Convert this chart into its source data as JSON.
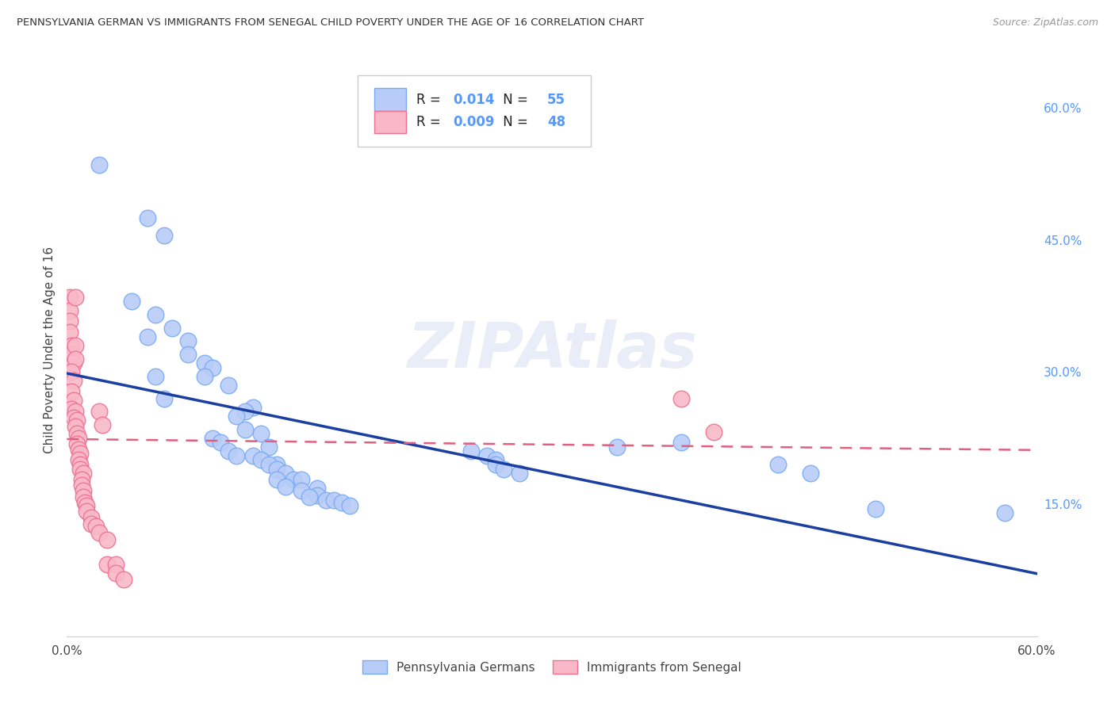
{
  "title": "PENNSYLVANIA GERMAN VS IMMIGRANTS FROM SENEGAL CHILD POVERTY UNDER THE AGE OF 16 CORRELATION CHART",
  "source": "Source: ZipAtlas.com",
  "ylabel": "Child Poverty Under the Age of 16",
  "bg_color": "#ffffff",
  "plot_bg_color": "#ffffff",
  "grid_color": "#cccccc",
  "blue_scatter_face": "#b8ccf8",
  "blue_scatter_edge": "#7aaaf5",
  "pink_scatter_face": "#f8b8c8",
  "pink_scatter_edge": "#f07090",
  "trend_blue_color": "#1a3fa0",
  "trend_pink_color": "#e06080",
  "right_tick_color": "#5599ff",
  "R_blue": 0.014,
  "N_blue": 55,
  "R_pink": 0.009,
  "N_pink": 48,
  "xlim": [
    0.0,
    0.6
  ],
  "ylim": [
    0.0,
    0.65
  ],
  "xticks": [
    0.0,
    0.1,
    0.2,
    0.3,
    0.4,
    0.5,
    0.6
  ],
  "yticks_right": [
    0.15,
    0.3,
    0.45,
    0.6
  ],
  "ytick_labels_right": [
    "15.0%",
    "30.0%",
    "45.0%",
    "60.0%"
  ],
  "blue_points": [
    [
      0.02,
      0.535
    ],
    [
      0.05,
      0.475
    ],
    [
      0.06,
      0.455
    ],
    [
      0.04,
      0.38
    ],
    [
      0.055,
      0.365
    ],
    [
      0.065,
      0.35
    ],
    [
      0.05,
      0.34
    ],
    [
      0.075,
      0.335
    ],
    [
      0.075,
      0.32
    ],
    [
      0.085,
      0.31
    ],
    [
      0.09,
      0.305
    ],
    [
      0.055,
      0.295
    ],
    [
      0.085,
      0.295
    ],
    [
      0.1,
      0.285
    ],
    [
      0.06,
      0.27
    ],
    [
      0.115,
      0.26
    ],
    [
      0.11,
      0.255
    ],
    [
      0.105,
      0.25
    ],
    [
      0.11,
      0.235
    ],
    [
      0.12,
      0.23
    ],
    [
      0.09,
      0.225
    ],
    [
      0.095,
      0.22
    ],
    [
      0.125,
      0.215
    ],
    [
      0.1,
      0.21
    ],
    [
      0.105,
      0.205
    ],
    [
      0.115,
      0.205
    ],
    [
      0.12,
      0.2
    ],
    [
      0.13,
      0.195
    ],
    [
      0.125,
      0.195
    ],
    [
      0.13,
      0.19
    ],
    [
      0.135,
      0.185
    ],
    [
      0.13,
      0.178
    ],
    [
      0.14,
      0.178
    ],
    [
      0.145,
      0.178
    ],
    [
      0.135,
      0.17
    ],
    [
      0.155,
      0.168
    ],
    [
      0.145,
      0.165
    ],
    [
      0.155,
      0.16
    ],
    [
      0.15,
      0.158
    ],
    [
      0.16,
      0.155
    ],
    [
      0.165,
      0.155
    ],
    [
      0.17,
      0.152
    ],
    [
      0.175,
      0.148
    ],
    [
      0.25,
      0.21
    ],
    [
      0.26,
      0.205
    ],
    [
      0.265,
      0.2
    ],
    [
      0.265,
      0.195
    ],
    [
      0.27,
      0.19
    ],
    [
      0.28,
      0.185
    ],
    [
      0.34,
      0.215
    ],
    [
      0.38,
      0.22
    ],
    [
      0.44,
      0.195
    ],
    [
      0.46,
      0.185
    ],
    [
      0.5,
      0.145
    ],
    [
      0.58,
      0.14
    ]
  ],
  "pink_points": [
    [
      0.002,
      0.385
    ],
    [
      0.002,
      0.37
    ],
    [
      0.002,
      0.358
    ],
    [
      0.002,
      0.345
    ],
    [
      0.003,
      0.33
    ],
    [
      0.003,
      0.32
    ],
    [
      0.005,
      0.385
    ],
    [
      0.004,
      0.31
    ],
    [
      0.005,
      0.33
    ],
    [
      0.005,
      0.315
    ],
    [
      0.003,
      0.3
    ],
    [
      0.004,
      0.29
    ],
    [
      0.003,
      0.278
    ],
    [
      0.004,
      0.268
    ],
    [
      0.003,
      0.258
    ],
    [
      0.005,
      0.255
    ],
    [
      0.004,
      0.248
    ],
    [
      0.006,
      0.245
    ],
    [
      0.005,
      0.238
    ],
    [
      0.006,
      0.23
    ],
    [
      0.007,
      0.225
    ],
    [
      0.006,
      0.218
    ],
    [
      0.007,
      0.212
    ],
    [
      0.008,
      0.208
    ],
    [
      0.007,
      0.2
    ],
    [
      0.008,
      0.195
    ],
    [
      0.008,
      0.19
    ],
    [
      0.01,
      0.185
    ],
    [
      0.009,
      0.178
    ],
    [
      0.009,
      0.172
    ],
    [
      0.01,
      0.165
    ],
    [
      0.01,
      0.158
    ],
    [
      0.011,
      0.152
    ],
    [
      0.012,
      0.148
    ],
    [
      0.012,
      0.142
    ],
    [
      0.015,
      0.135
    ],
    [
      0.015,
      0.128
    ],
    [
      0.02,
      0.255
    ],
    [
      0.022,
      0.24
    ],
    [
      0.018,
      0.125
    ],
    [
      0.02,
      0.118
    ],
    [
      0.025,
      0.11
    ],
    [
      0.025,
      0.082
    ],
    [
      0.03,
      0.082
    ],
    [
      0.03,
      0.072
    ],
    [
      0.035,
      0.065
    ],
    [
      0.38,
      0.27
    ],
    [
      0.4,
      0.232
    ]
  ]
}
